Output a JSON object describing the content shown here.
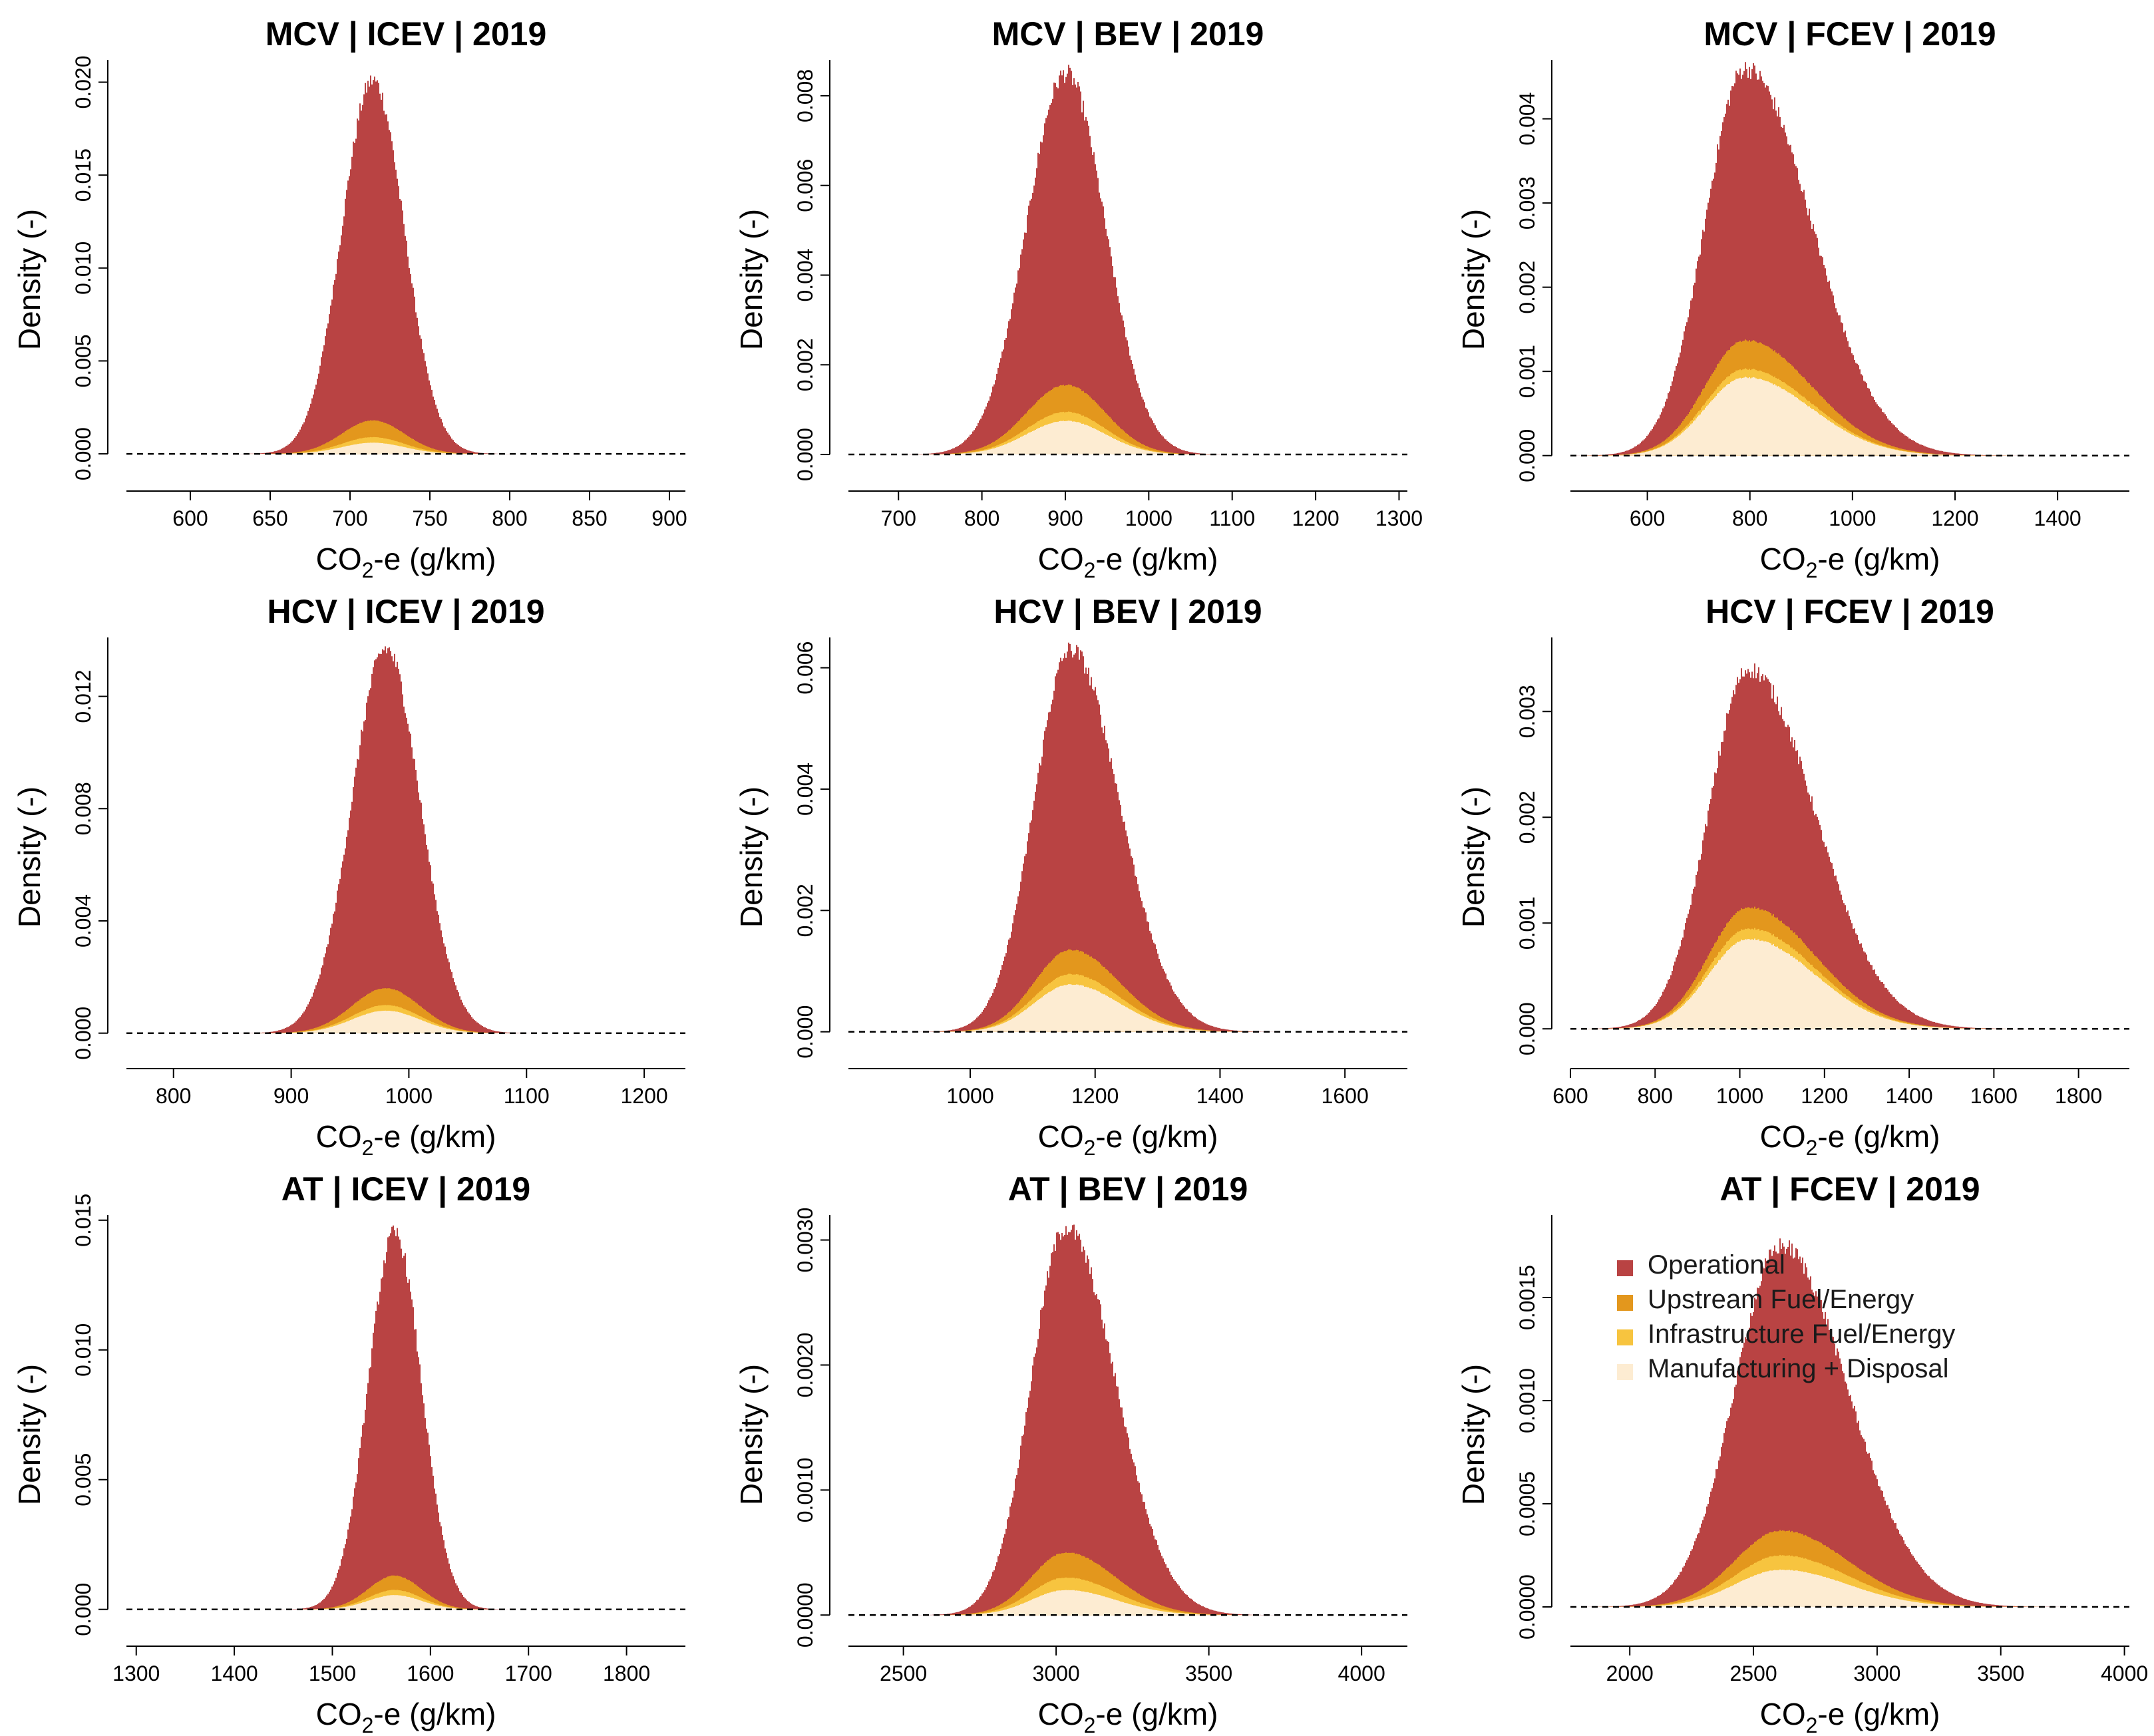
{
  "figure": {
    "colors": {
      "operational": "#b94343",
      "upstream": "#e3971d",
      "infrastructure": "#f7c43f",
      "manufacturing": "#fdecd2",
      "baseline": "#000000"
    }
  },
  "legend": {
    "items": [
      {
        "label": "Operational",
        "color": "#b94343"
      },
      {
        "label": "Upstream Fuel/Energy",
        "color": "#e3971d"
      },
      {
        "label": "Infrastructure Fuel/Energy",
        "color": "#f7c43f"
      },
      {
        "label": "Manufacturing + Disposal",
        "color": "#fdecd2"
      }
    ]
  },
  "chart_data": [
    {
      "type": "area",
      "title": "MCV | ICEV | 2019",
      "xlabel": "CO2-e (g/km)",
      "ylabel": "Density (-)",
      "xlim": [
        560,
        910
      ],
      "ylim": [
        -0.001,
        0.0212
      ],
      "xticks": [
        "600",
        "650",
        "700",
        "750",
        "800",
        "850",
        "900"
      ],
      "yticks": [
        "0.000",
        "0.005",
        "0.010",
        "0.015",
        "0.020"
      ],
      "mean": 714,
      "sd": 19.5,
      "skew": 0,
      "series": [
        {
          "name": "Operational",
          "peak": 0.0201
        },
        {
          "name": "Upstream Fuel/Energy",
          "peak": 0.0018
        },
        {
          "name": "Infrastructure Fuel/Energy",
          "peak": 0.0009
        },
        {
          "name": "Manufacturing + Disposal",
          "peak": 0.0006
        }
      ]
    },
    {
      "type": "area",
      "title": "MCV | BEV | 2019",
      "xlabel": "CO2-e (g/km)",
      "ylabel": "Density (-)",
      "xlim": [
        640,
        1310
      ],
      "ylim": [
        -0.0004,
        0.0088
      ],
      "xticks": [
        "700",
        "800",
        "900",
        "1000",
        "1100",
        "1200",
        "1300"
      ],
      "yticks": [
        "0.000",
        "0.002",
        "0.004",
        "0.006",
        "0.008"
      ],
      "mean": 900,
      "sd": 47,
      "skew": 0,
      "series": [
        {
          "name": "Operational",
          "peak": 0.0085
        },
        {
          "name": "Upstream Fuel/Energy",
          "peak": 0.00155
        },
        {
          "name": "Infrastructure Fuel/Energy",
          "peak": 0.00095
        },
        {
          "name": "Manufacturing + Disposal",
          "peak": 0.00075
        }
      ]
    },
    {
      "type": "area",
      "title": "MCV | FCEV | 2019",
      "xlabel": "CO2-e (g/km)",
      "ylabel": "Density (-)",
      "xlim": [
        450,
        1540
      ],
      "ylim": [
        -0.0002,
        0.0047
      ],
      "xticks": [
        "600",
        "800",
        "1000",
        "1200",
        "1400"
      ],
      "yticks": [
        "0.000",
        "0.001",
        "0.002",
        "0.003",
        "0.004"
      ],
      "mean": 790,
      "sd": 95,
      "skew": 0.35,
      "series": [
        {
          "name": "Operational",
          "peak": 0.0046
        },
        {
          "name": "Upstream Fuel/Energy",
          "peak": 0.00137
        },
        {
          "name": "Infrastructure Fuel/Energy",
          "peak": 0.00103
        },
        {
          "name": "Manufacturing + Disposal",
          "peak": 0.00093
        }
      ]
    },
    {
      "type": "area",
      "title": "HCV | ICEV | 2019",
      "xlabel": "CO2-e (g/km)",
      "ylabel": "Density (-)",
      "xlim": [
        760,
        1235
      ],
      "ylim": [
        -0.0006,
        0.0141
      ],
      "xticks": [
        "800",
        "900",
        "1000",
        "1100",
        "1200"
      ],
      "yticks": [
        "0.000",
        "0.004",
        "0.008",
        "0.012"
      ],
      "mean": 980,
      "sd": 29,
      "skew": 0,
      "series": [
        {
          "name": "Operational",
          "peak": 0.0137
        },
        {
          "name": "Upstream Fuel/Energy",
          "peak": 0.0016
        },
        {
          "name": "Infrastructure Fuel/Energy",
          "peak": 0.001
        },
        {
          "name": "Manufacturing + Disposal",
          "peak": 0.0008
        }
      ]
    },
    {
      "type": "area",
      "title": "HCV | BEV | 2019",
      "xlabel": "CO2-e (g/km)",
      "ylabel": "Density (-)",
      "xlim": [
        805,
        1700
      ],
      "ylim": [
        -0.0003,
        0.0065
      ],
      "xticks": [
        "1000",
        "1200",
        "1400",
        "1600"
      ],
      "yticks": [
        "0.000",
        "0.002",
        "0.004",
        "0.006"
      ],
      "mean": 1160,
      "sd": 65,
      "skew": 0.2,
      "series": [
        {
          "name": "Operational",
          "peak": 0.0063
        },
        {
          "name": "Upstream Fuel/Energy",
          "peak": 0.00135
        },
        {
          "name": "Infrastructure Fuel/Energy",
          "peak": 0.00095
        },
        {
          "name": "Manufacturing + Disposal",
          "peak": 0.00078
        }
      ]
    },
    {
      "type": "area",
      "title": "HCV | FCEV | 2019",
      "xlabel": "CO2-e (g/km)",
      "ylabel": "Density (-)",
      "xlim": [
        600,
        1920
      ],
      "ylim": [
        -0.0002,
        0.0037
      ],
      "xticks": [
        "600",
        "800",
        "1000",
        "1200",
        "1400",
        "1600",
        "1800"
      ],
      "yticks": [
        "0.000",
        "0.001",
        "0.002",
        "0.003"
      ],
      "mean": 1020,
      "sd": 115,
      "skew": 0.35,
      "series": [
        {
          "name": "Operational",
          "peak": 0.0034
        },
        {
          "name": "Upstream Fuel/Energy",
          "peak": 0.00115
        },
        {
          "name": "Infrastructure Fuel/Energy",
          "peak": 0.00095
        },
        {
          "name": "Manufacturing + Disposal",
          "peak": 0.00085
        }
      ]
    },
    {
      "type": "area",
      "title": "AT | ICEV | 2019",
      "xlabel": "CO2-e (g/km)",
      "ylabel": "Density (-)",
      "xlim": [
        1290,
        1860
      ],
      "ylim": [
        -0.0007,
        0.0152
      ],
      "xticks": [
        "1300",
        "1400",
        "1500",
        "1600",
        "1700",
        "1800"
      ],
      "yticks": [
        "0.000",
        "0.005",
        "0.010",
        "0.015"
      ],
      "mean": 1563,
      "sd": 27,
      "skew": 0,
      "series": [
        {
          "name": "Operational",
          "peak": 0.0145
        },
        {
          "name": "Upstream Fuel/Energy",
          "peak": 0.0013
        },
        {
          "name": "Infrastructure Fuel/Energy",
          "peak": 0.00075
        },
        {
          "name": "Manufacturing + Disposal",
          "peak": 0.00055
        }
      ]
    },
    {
      "type": "area",
      "title": "AT | BEV | 2019",
      "xlabel": "CO2-e (g/km)",
      "ylabel": "Density (-)",
      "xlim": [
        2320,
        4150
      ],
      "ylim": [
        -0.0001,
        0.0032
      ],
      "xticks": [
        "2500",
        "3000",
        "3500",
        "4000"
      ],
      "yticks": [
        "0.0000",
        "0.0010",
        "0.0020",
        "0.0030"
      ],
      "mean": 3030,
      "sd": 130,
      "skew": 0.25,
      "series": [
        {
          "name": "Operational",
          "peak": 0.0031
        },
        {
          "name": "Upstream Fuel/Energy",
          "peak": 0.0005
        },
        {
          "name": "Infrastructure Fuel/Energy",
          "peak": 0.0003
        },
        {
          "name": "Manufacturing + Disposal",
          "peak": 0.0002
        }
      ]
    },
    {
      "type": "area",
      "title": "AT | FCEV | 2019",
      "xlabel": "CO2-e (g/km)",
      "ylabel": "Density (-)",
      "xlim": [
        1760,
        4020
      ],
      "ylim": [
        -0.0001,
        0.0019
      ],
      "xticks": [
        "2000",
        "2500",
        "3000",
        "3500",
        "4000"
      ],
      "yticks": [
        "0.0000",
        "0.0005",
        "0.0010",
        "0.0015"
      ],
      "mean": 2610,
      "sd": 215,
      "skew": 0.25,
      "series": [
        {
          "name": "Operational",
          "peak": 0.00175
        },
        {
          "name": "Upstream Fuel/Energy",
          "peak": 0.00037
        },
        {
          "name": "Infrastructure Fuel/Energy",
          "peak": 0.00025
        },
        {
          "name": "Manufacturing + Disposal",
          "peak": 0.00018
        }
      ]
    }
  ]
}
